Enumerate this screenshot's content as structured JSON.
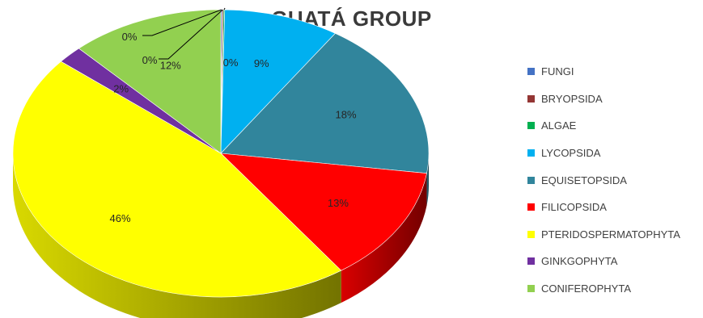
{
  "chart_data": {
    "type": "pie",
    "title": "GUATÁ GROUP",
    "categories": [
      "FUNGI",
      "BRYOPSIDA",
      "ALGAE",
      "LYCOPSIDA",
      "EQUISETOPSIDA",
      "FILICOPSIDA",
      "PTERIDOSPERMATOPHYTA",
      "GINKGOPHYTA",
      "CONIFEROPHYTA"
    ],
    "values": [
      0.1,
      0.1,
      0.1,
      9,
      18,
      13,
      46,
      2,
      12
    ],
    "labels": [
      "0%",
      "0%",
      "0%",
      "9%",
      "18%",
      "13%",
      "46%",
      "2%",
      "12%"
    ],
    "colors": [
      "#4472c4",
      "#943634",
      "#00b050",
      "#00b0f0",
      "#31859c",
      "#ff0000",
      "#ffff00",
      "#7030a0",
      "#92d050"
    ],
    "legend_position": "right",
    "style": "3d-pie"
  }
}
